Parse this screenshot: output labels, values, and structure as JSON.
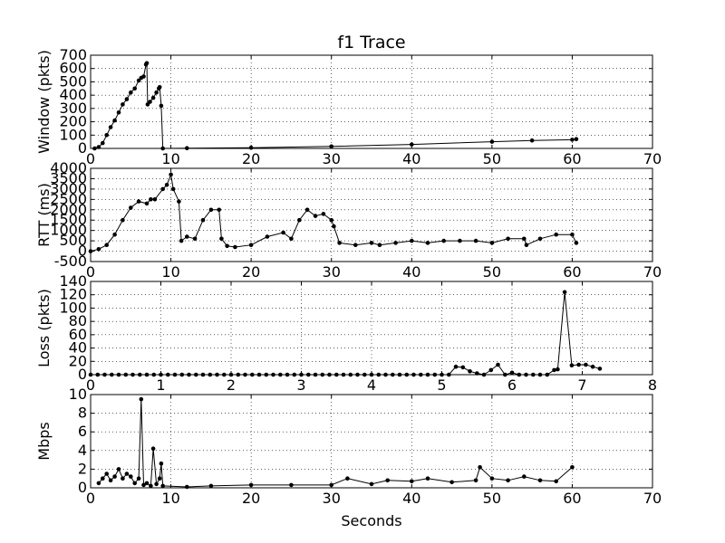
{
  "chart_data": {
    "title": "f1 Trace",
    "panels": [
      {
        "type": "line",
        "ylabel": "Window (pkts)",
        "xlim": [
          0,
          70
        ],
        "ylim": [
          0,
          700
        ],
        "xticks": [
          0,
          10,
          20,
          30,
          40,
          50,
          60,
          70
        ],
        "yticks": [
          0,
          100,
          200,
          300,
          400,
          500,
          600,
          700
        ],
        "grid": true,
        "series": [
          {
            "x": [
              0.5,
              1.0,
              1.5,
              2.0,
              2.5,
              3.0,
              3.5,
              4.0,
              4.5,
              5.0,
              5.5,
              6.0,
              6.3,
              6.6,
              6.9,
              7.0,
              7.1,
              7.4,
              7.8,
              8.2,
              8.5,
              8.6,
              8.8,
              9.0,
              12,
              20,
              30,
              40,
              50,
              55,
              60,
              60.5
            ],
            "y": [
              0,
              10,
              40,
              100,
              160,
              210,
              270,
              330,
              370,
              420,
              450,
              510,
              530,
              540,
              630,
              640,
              330,
              350,
              380,
              420,
              450,
              460,
              320,
              0,
              2,
              5,
              15,
              30,
              50,
              60,
              65,
              70
            ]
          }
        ]
      },
      {
        "type": "line",
        "ylabel": "RTT (ms)",
        "xlim": [
          0,
          70
        ],
        "ylim": [
          -500,
          4000
        ],
        "xticks": [
          0,
          10,
          20,
          30,
          40,
          50,
          60,
          70
        ],
        "yticks": [
          -500,
          0,
          500,
          1000,
          1500,
          2000,
          2500,
          3000,
          3500,
          4000
        ],
        "grid": true,
        "series": [
          {
            "x": [
              0,
              1,
              2,
              3,
              4,
              5,
              6,
              7,
              7.5,
              8,
              9,
              9.5,
              10,
              10.3,
              11,
              11.3,
              12,
              13,
              14,
              15,
              16,
              16.3,
              17,
              18,
              20,
              22,
              24,
              25,
              26,
              27,
              28,
              29,
              30,
              30.3,
              31,
              33,
              35,
              36,
              38,
              40,
              42,
              44,
              46,
              48,
              50,
              52,
              54,
              54.3,
              56,
              58,
              60,
              60.5
            ],
            "y": [
              0,
              100,
              300,
              800,
              1500,
              2100,
              2400,
              2300,
              2500,
              2500,
              3000,
              3200,
              3700,
              3000,
              2400,
              500,
              700,
              600,
              1500,
              2000,
              2000,
              600,
              250,
              200,
              300,
              700,
              900,
              600,
              1500,
              2000,
              1700,
              1800,
              1500,
              1200,
              400,
              300,
              400,
              300,
              400,
              500,
              400,
              500,
              500,
              500,
              400,
              600,
              600,
              300,
              600,
              800,
              800,
              400
            ]
          }
        ]
      },
      {
        "type": "line",
        "ylabel": "Loss (pkts)",
        "xlim": [
          0,
          8
        ],
        "ylim": [
          0,
          140
        ],
        "xticks": [
          0,
          1,
          2,
          3,
          4,
          5,
          6,
          7,
          8
        ],
        "yticks": [
          0,
          20,
          40,
          60,
          80,
          100,
          120,
          140
        ],
        "grid": true,
        "series": [
          {
            "x": [
              0,
              0.1,
              0.2,
              0.3,
              0.4,
              0.5,
              0.6,
              0.7,
              0.8,
              0.9,
              1.0,
              1.1,
              1.2,
              1.3,
              1.4,
              1.5,
              1.6,
              1.7,
              1.8,
              1.9,
              2.0,
              2.1,
              2.2,
              2.3,
              2.4,
              2.5,
              2.6,
              2.7,
              2.8,
              2.9,
              3.0,
              3.1,
              3.2,
              3.3,
              3.4,
              3.5,
              3.6,
              3.7,
              3.8,
              3.9,
              4.0,
              4.1,
              4.2,
              4.3,
              4.4,
              4.5,
              4.6,
              4.7,
              4.8,
              4.9,
              5.0,
              5.1,
              5.2,
              5.3,
              5.4,
              5.5,
              5.6,
              5.7,
              5.8,
              5.9,
              6.0,
              6.1,
              6.2,
              6.3,
              6.4,
              6.5,
              6.6,
              6.65,
              6.75,
              6.85,
              6.95,
              7.05,
              7.15,
              7.25
            ],
            "y": [
              0,
              0,
              0,
              0,
              0,
              0,
              0,
              0,
              0,
              0,
              0,
              0,
              0,
              0,
              0,
              0,
              0,
              0,
              0,
              0,
              0,
              0,
              0,
              0,
              0,
              0,
              0,
              0,
              0,
              0,
              0,
              0,
              0,
              0,
              0,
              0,
              0,
              0,
              0,
              0,
              0,
              0,
              0,
              0,
              0,
              0,
              0,
              0,
              0,
              0,
              0,
              0,
              12,
              11,
              5,
              2,
              0,
              7,
              15,
              0,
              3,
              0,
              0,
              0,
              0,
              0,
              7,
              8,
              124,
              14,
              15,
              15,
              12,
              9
            ]
          }
        ]
      },
      {
        "type": "line",
        "ylabel": "Mbps",
        "xlabel": "Seconds",
        "xlim": [
          0,
          70
        ],
        "ylim": [
          0,
          10
        ],
        "xticks": [
          0,
          10,
          20,
          30,
          40,
          50,
          60,
          70
        ],
        "yticks": [
          0,
          2,
          4,
          6,
          8,
          10
        ],
        "grid": true,
        "series": [
          {
            "x": [
              1.0,
              1.5,
              2.0,
              2.5,
              3.0,
              3.5,
              4.0,
              4.5,
              5.0,
              5.5,
              6.0,
              6.3,
              6.6,
              7.0,
              7.5,
              7.8,
              8.2,
              8.6,
              8.8,
              9.0,
              12,
              15,
              20,
              25,
              30,
              32,
              35,
              37,
              40,
              42,
              45,
              48,
              48.5,
              50,
              52,
              54,
              56,
              58,
              60
            ],
            "y": [
              0.5,
              1.0,
              1.5,
              0.8,
              1.2,
              2.0,
              1.0,
              1.5,
              1.2,
              0.5,
              1.0,
              9.5,
              0.3,
              0.5,
              0.2,
              4.2,
              0.4,
              1.0,
              2.6,
              0.2,
              0.1,
              0.2,
              0.3,
              0.3,
              0.3,
              1.0,
              0.4,
              0.8,
              0.7,
              1.0,
              0.6,
              0.8,
              2.2,
              1.0,
              0.8,
              1.2,
              0.8,
              0.7,
              2.2
            ]
          }
        ]
      }
    ]
  }
}
